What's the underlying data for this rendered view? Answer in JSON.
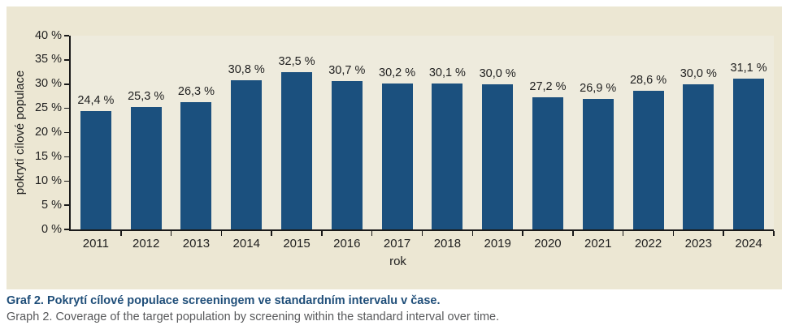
{
  "chart_data": {
    "type": "bar",
    "categories": [
      "2011",
      "2012",
      "2013",
      "2014",
      "2015",
      "2016",
      "2017",
      "2018",
      "2019",
      "2020",
      "2021",
      "2022",
      "2023",
      "2024"
    ],
    "values": [
      24.4,
      25.3,
      26.3,
      30.8,
      32.5,
      30.7,
      30.2,
      30.1,
      30.0,
      27.2,
      26.9,
      28.6,
      30.0,
      31.1
    ],
    "value_labels": [
      "24,4 %",
      "25,3 %",
      "26,3 %",
      "30,8 %",
      "32,5 %",
      "30,7 %",
      "30,2 %",
      "30,1 %",
      "30,0 %",
      "27,2 %",
      "26,9 %",
      "28,6 %",
      "30,0 %",
      "31,1 %"
    ],
    "title": "",
    "xlabel": "rok",
    "ylabel": "pokrytí cílové populace",
    "ylim": [
      0,
      40
    ],
    "ytick_step": 5,
    "ytick_labels": [
      "0 %",
      "5 %",
      "10 %",
      "15 %",
      "20 %",
      "25 %",
      "30 %",
      "35 %",
      "40 %"
    ],
    "grid": false,
    "legend": false,
    "bar_color": "#1b507e",
    "panel_background": "#ece7d3",
    "plot_background": "#eeebdd"
  },
  "caption": {
    "czech": "Graf 2. Pokrytí cílové populace screeningem ve standardním intervalu v čase.",
    "english": "Graph 2. Coverage of the target population by screening within the standard interval over time.",
    "czech_color": "#1f4e79",
    "english_color": "#58595b"
  }
}
